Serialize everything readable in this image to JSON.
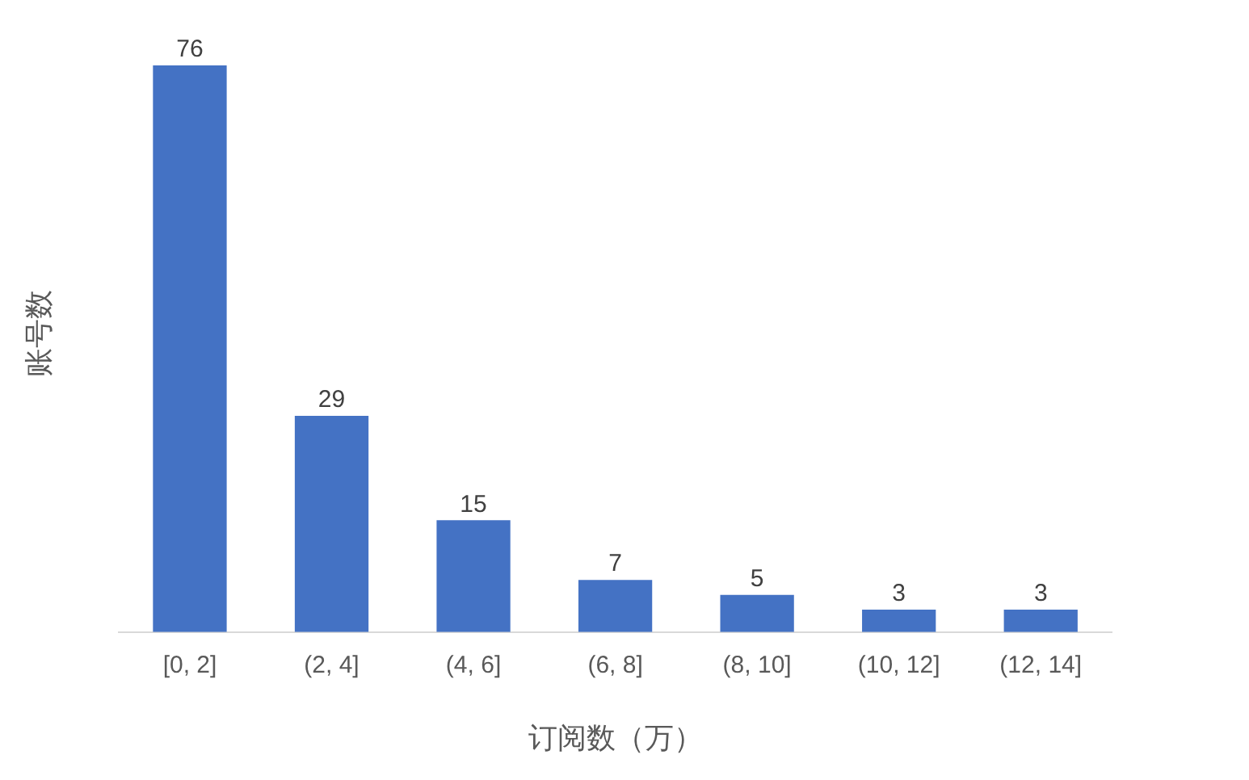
{
  "chart_data": {
    "type": "bar",
    "xlabel": "订阅数（万）",
    "ylabel": "账号数",
    "categories": [
      "[0, 2]",
      "(2, 4]",
      "(4, 6]",
      "(6, 8]",
      "(8, 10]",
      "(10, 12]",
      "(12, 14]"
    ],
    "values": [
      76,
      29,
      15,
      7,
      5,
      3,
      3
    ],
    "color": "#4472c4",
    "data_labels": true,
    "grid": false,
    "legend": false
  }
}
